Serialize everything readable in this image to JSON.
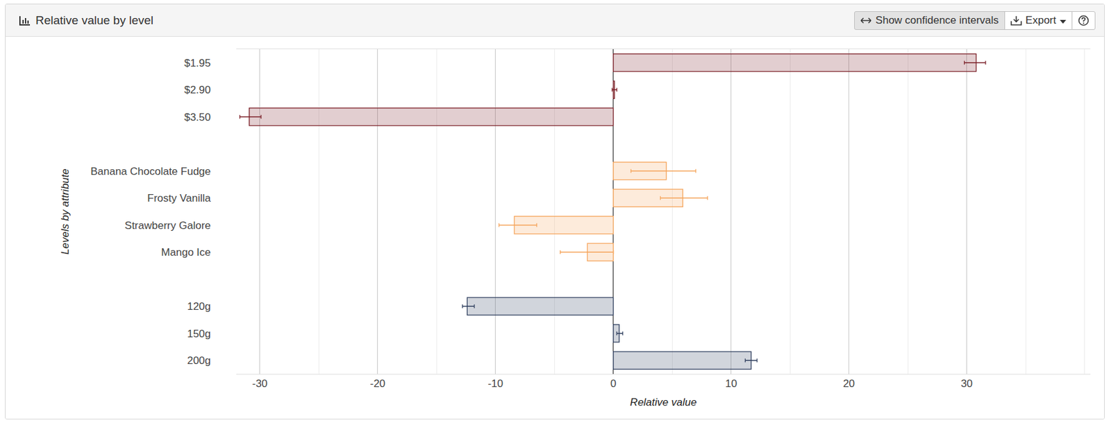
{
  "toolbar": {
    "buttons": [
      "Show confidence intervals",
      "Export"
    ]
  },
  "chart_data": {
    "type": "bar",
    "title": "Relative value by level",
    "orientation": "horizontal",
    "x_label": "Relative value",
    "y_label": "Levels by attribute",
    "categories": [
      "$1.95",
      "$2.90",
      "$3.50",
      null,
      "Banana Chocolate Fudge",
      "Frosty Vanilla",
      "Strawberry Galore",
      "Mango Ice",
      null,
      "120g",
      "150g",
      "200g"
    ],
    "values": [
      30.8,
      0.1,
      -30.9,
      null,
      4.5,
      5.9,
      -8.4,
      -2.2,
      null,
      -12.4,
      0.5,
      11.7
    ],
    "ci_lower": [
      29.8,
      -0.1,
      -31.7,
      null,
      1.5,
      4.0,
      -9.7,
      -4.5,
      null,
      -12.8,
      0.3,
      11.2
    ],
    "ci_upper": [
      31.6,
      0.3,
      -29.9,
      null,
      7.0,
      8.0,
      -6.5,
      0.0,
      null,
      -11.8,
      0.8,
      12.2
    ],
    "colors": [
      "#7b1f27",
      "#7b1f27",
      "#7b1f27",
      null,
      "#f5a45a",
      "#f5a45a",
      "#f5a45a",
      "#f5a45a",
      null,
      "#2f3f5e",
      "#2f3f5e",
      "#2f3f5e"
    ],
    "xlim": [
      -32,
      40.5
    ],
    "xticks": [
      -30,
      -20,
      -10,
      0,
      10,
      20,
      30
    ],
    "grid": true
  }
}
